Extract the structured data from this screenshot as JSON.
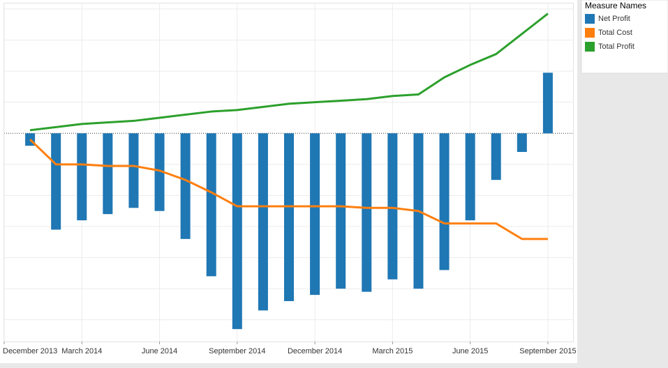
{
  "chart_data": {
    "type": "combo",
    "x": [
      "2014-01",
      "2014-02",
      "2014-03",
      "2014-04",
      "2014-05",
      "2014-06",
      "2014-07",
      "2014-08",
      "2014-09",
      "2014-10",
      "2014-11",
      "2014-12",
      "2015-01",
      "2015-02",
      "2015-03",
      "2015-04",
      "2015-05",
      "2015-06",
      "2015-07",
      "2015-08",
      "2015-09"
    ],
    "xlim": [
      "2013-12",
      "2015-10"
    ],
    "xticks": [
      {
        "value": "2013-12",
        "label": "December 2013"
      },
      {
        "value": "2014-03",
        "label": "March 2014"
      },
      {
        "value": "2014-06",
        "label": "June 2014"
      },
      {
        "value": "2014-09",
        "label": "September 2014"
      },
      {
        "value": "2014-12",
        "label": "December 2014"
      },
      {
        "value": "2015-03",
        "label": "March 2015"
      },
      {
        "value": "2015-06",
        "label": "June 2015"
      },
      {
        "value": "2015-09",
        "label": "September 2015"
      }
    ],
    "ylim": [
      -6.7,
      4.2
    ],
    "ygrid": [
      -6,
      -5,
      -4,
      -3,
      -2,
      -1,
      0,
      1,
      2,
      3,
      4
    ],
    "grid": true,
    "legend_title": "Measure Names",
    "legend": "right",
    "series": [
      {
        "name": "Net Profit",
        "type": "bar",
        "color": "#1f77b4",
        "values": [
          -0.4,
          -3.1,
          -2.8,
          -2.6,
          -2.4,
          -2.5,
          -3.4,
          -4.6,
          -6.3,
          -5.7,
          -5.4,
          -5.2,
          -5.0,
          -5.1,
          -4.7,
          -5.0,
          -4.4,
          -2.8,
          -1.5,
          -0.6,
          1.95
        ]
      },
      {
        "name": "Total Cost",
        "type": "line",
        "color": "#ff7f0e",
        "values": [
          -0.2,
          -1.0,
          -1.0,
          -1.05,
          -1.05,
          -1.2,
          -1.5,
          -1.9,
          -2.35,
          -2.35,
          -2.35,
          -2.35,
          -2.35,
          -2.4,
          -2.4,
          -2.5,
          -2.9,
          -2.9,
          -2.9,
          -3.4,
          -3.4
        ]
      },
      {
        "name": "Total Profit",
        "type": "line",
        "color": "#2ca02c",
        "values": [
          0.1,
          0.2,
          0.3,
          0.35,
          0.4,
          0.5,
          0.6,
          0.7,
          0.75,
          0.85,
          0.95,
          1.0,
          1.05,
          1.1,
          1.2,
          1.25,
          1.8,
          2.2,
          2.55,
          3.2,
          3.85
        ]
      }
    ]
  }
}
